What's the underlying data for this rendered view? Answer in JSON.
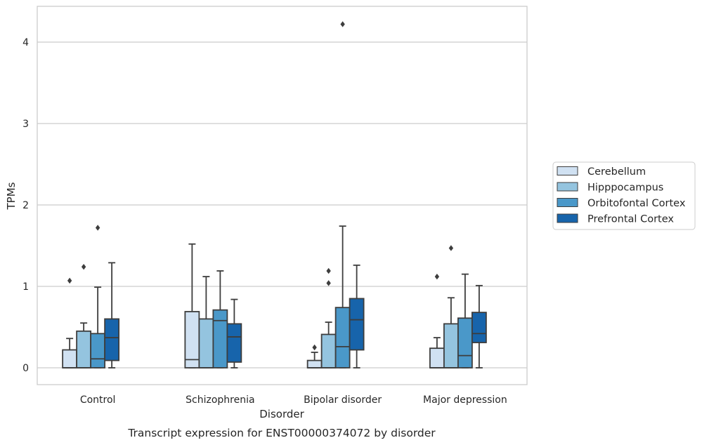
{
  "caption": "Transcript expression for ENST00000374072 by disorder",
  "chart_data": {
    "type": "box",
    "xlabel": "Disorder",
    "ylabel": "TPMs",
    "ylim": [
      -0.2,
      4.45
    ],
    "yticks": [
      0,
      1,
      2,
      3,
      4
    ],
    "grid": "horizontal",
    "legend_position": "right",
    "categories": [
      "Control",
      "Schizophrenia",
      "Bipolar disorder",
      "Major depression"
    ],
    "series": [
      {
        "name": "Cerebellum",
        "color": "#d0e1f2",
        "boxes": [
          {
            "whisker_low": 0,
            "q1": 0,
            "median": 0,
            "q3": 0.22,
            "whisker_high": 0.36,
            "outliers": [
              1.07
            ]
          },
          {
            "whisker_low": 0,
            "q1": 0,
            "median": 0.1,
            "q3": 0.69,
            "whisker_high": 1.52,
            "outliers": []
          },
          {
            "whisker_low": 0,
            "q1": 0,
            "median": 0,
            "q3": 0.09,
            "whisker_high": 0.19,
            "outliers": [
              0.25
            ]
          },
          {
            "whisker_low": 0,
            "q1": 0,
            "median": 0,
            "q3": 0.24,
            "whisker_high": 0.37,
            "outliers": [
              1.12
            ]
          }
        ]
      },
      {
        "name": "Hipppocampus",
        "color": "#94c4df",
        "boxes": [
          {
            "whisker_low": 0,
            "q1": 0,
            "median": 0,
            "q3": 0.45,
            "whisker_high": 0.55,
            "outliers": [
              1.24
            ]
          },
          {
            "whisker_low": 0,
            "q1": 0,
            "median": 0,
            "q3": 0.6,
            "whisker_high": 1.12,
            "outliers": []
          },
          {
            "whisker_low": 0,
            "q1": 0,
            "median": 0,
            "q3": 0.41,
            "whisker_high": 0.56,
            "outliers": [
              1.04,
              1.19
            ]
          },
          {
            "whisker_low": 0,
            "q1": 0,
            "median": 0,
            "q3": 0.54,
            "whisker_high": 0.86,
            "outliers": [
              1.47
            ]
          }
        ]
      },
      {
        "name": "Orbitofontal Cortex",
        "color": "#4a98c9",
        "boxes": [
          {
            "whisker_low": 0,
            "q1": 0,
            "median": 0.11,
            "q3": 0.42,
            "whisker_high": 0.99,
            "outliers": [
              1.72
            ]
          },
          {
            "whisker_low": 0,
            "q1": 0,
            "median": 0.58,
            "q3": 0.71,
            "whisker_high": 1.19,
            "outliers": []
          },
          {
            "whisker_low": 0,
            "q1": 0,
            "median": 0.26,
            "q3": 0.74,
            "whisker_high": 1.74,
            "outliers": [
              4.22
            ]
          },
          {
            "whisker_low": 0,
            "q1": 0,
            "median": 0.15,
            "q3": 0.61,
            "whisker_high": 1.15,
            "outliers": []
          }
        ]
      },
      {
        "name": "Prefrontal Cortex",
        "color": "#1764ab",
        "boxes": [
          {
            "whisker_low": 0,
            "q1": 0.09,
            "median": 0.37,
            "q3": 0.6,
            "whisker_high": 1.29,
            "outliers": []
          },
          {
            "whisker_low": 0,
            "q1": 0.07,
            "median": 0.38,
            "q3": 0.54,
            "whisker_high": 0.84,
            "outliers": []
          },
          {
            "whisker_low": 0,
            "q1": 0.22,
            "median": 0.59,
            "q3": 0.85,
            "whisker_high": 1.26,
            "outliers": []
          },
          {
            "whisker_low": 0,
            "q1": 0.31,
            "median": 0.42,
            "q3": 0.68,
            "whisker_high": 1.01,
            "outliers": []
          }
        ]
      }
    ]
  }
}
